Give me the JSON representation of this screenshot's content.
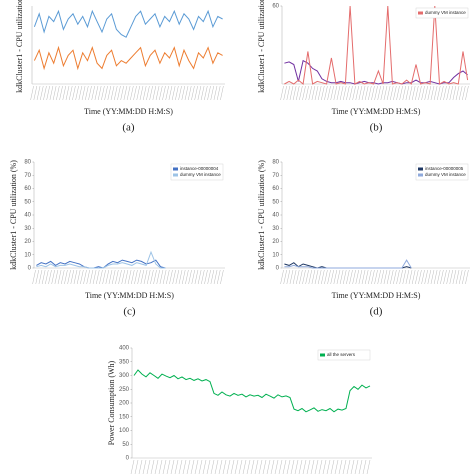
{
  "chart_data": [
    {
      "type": "line",
      "ylabel": "kdkCluster1 - CPU utilization",
      "xlabel": "Time (YY:MM:DD H:M:S)",
      "caption": "(a)",
      "ylim": [
        0,
        30
      ],
      "series": [
        {
          "color": "#5b9bd5",
          "values": [
            22,
            27,
            20,
            26,
            24,
            28,
            21,
            25,
            27,
            23,
            26,
            22,
            28,
            24,
            20,
            25,
            27,
            21,
            19,
            18,
            22,
            26,
            28,
            23,
            25,
            27,
            22,
            26,
            24,
            28,
            23,
            27,
            25,
            21,
            26,
            24,
            28,
            22,
            26,
            25
          ]
        },
        {
          "color": "#ed7d31",
          "values": [
            9,
            13,
            6,
            12,
            8,
            14,
            7,
            11,
            13,
            6,
            12,
            9,
            14,
            8,
            6,
            11,
            13,
            7,
            9,
            8,
            10,
            12,
            14,
            7,
            11,
            13,
            8,
            12,
            10,
            14,
            7,
            13,
            9,
            6,
            12,
            10,
            14,
            8,
            12,
            11
          ]
        }
      ]
    },
    {
      "type": "line",
      "ylabel": "kdkCluster1 - CPU utilization",
      "xlabel": "Time (YY:MM:DD H:M:S)",
      "caption": "(b)",
      "ylim": [
        0,
        60
      ],
      "yticks": [
        60
      ],
      "series": [
        {
          "color": "#7030a0",
          "values": [
            16,
            17,
            15,
            2,
            18,
            16,
            12,
            10,
            4,
            2,
            1,
            1,
            2,
            1,
            1,
            0,
            1,
            2,
            1,
            1,
            0,
            1,
            1,
            2,
            1,
            0,
            1,
            1,
            3,
            1,
            1,
            2,
            1,
            0,
            1,
            1,
            5,
            8,
            10,
            7
          ]
        },
        {
          "name": "dummy VM instance",
          "color": "#e46c6c",
          "values": [
            0,
            2,
            0,
            3,
            0,
            25,
            0,
            2,
            1,
            0,
            20,
            0,
            1,
            0,
            60,
            0,
            2,
            0,
            1,
            0,
            10,
            0,
            60,
            0,
            1,
            0,
            3,
            0,
            15,
            0,
            1,
            0,
            60,
            0,
            2,
            0,
            1,
            0,
            25,
            3
          ]
        }
      ]
    },
    {
      "type": "line",
      "ylabel": "kdkCluster1 - CPU utilization (%)",
      "xlabel": "Time (YY:MM:DD H:M:S)",
      "caption": "(c)",
      "ylim": [
        0,
        80
      ],
      "yticks": [
        0,
        10,
        20,
        30,
        40,
        50,
        60,
        70,
        80
      ],
      "series": [
        {
          "name": "instance-00000004",
          "color": "#4472c4",
          "values": [
            2,
            4,
            3,
            5,
            2,
            4,
            3,
            5,
            4,
            3,
            1,
            0,
            0,
            1,
            0,
            3,
            5,
            4,
            6,
            5,
            4,
            6,
            5,
            3,
            4,
            6,
            1,
            0,
            null,
            null,
            null,
            null,
            null,
            null,
            null,
            null,
            null,
            null,
            null,
            null
          ]
        },
        {
          "name": "dummy VM instance",
          "color": "#9dc3e6",
          "values": [
            1,
            2,
            1,
            3,
            1,
            2,
            2,
            3,
            2,
            1,
            1,
            0,
            0,
            0,
            0,
            2,
            3,
            3,
            4,
            3,
            2,
            4,
            3,
            2,
            12,
            3,
            0,
            0,
            null,
            null,
            null,
            null,
            null,
            null,
            null,
            null,
            null,
            null,
            null,
            null
          ]
        }
      ]
    },
    {
      "type": "line",
      "ylabel": "kdkCluster1 - CPU utilization (%)",
      "xlabel": "Time (YY:MM:DD H:M:S)",
      "caption": "(d)",
      "ylim": [
        0,
        80
      ],
      "yticks": [
        0,
        10,
        20,
        30,
        40,
        50,
        60,
        70,
        80
      ],
      "series": [
        {
          "name": "instance-00000005",
          "color": "#1f3864",
          "values": [
            3,
            2,
            4,
            1,
            3,
            2,
            1,
            0,
            1,
            0,
            0,
            0,
            0,
            0,
            0,
            0,
            0,
            0,
            0,
            0,
            0,
            0,
            0,
            0,
            0,
            0,
            1,
            0,
            null,
            null,
            null,
            null,
            null,
            null,
            null,
            null,
            null,
            null,
            null,
            null
          ]
        },
        {
          "name": "dummy VM instance",
          "color": "#8faadc",
          "values": [
            1,
            1,
            2,
            1,
            1,
            1,
            0,
            0,
            0,
            0,
            0,
            0,
            0,
            0,
            0,
            0,
            0,
            0,
            0,
            0,
            0,
            0,
            0,
            0,
            0,
            0,
            6,
            0,
            null,
            null,
            null,
            null,
            null,
            null,
            null,
            null,
            null,
            null,
            null,
            null
          ]
        }
      ]
    },
    {
      "type": "line",
      "ylabel": "Power Consumption (Wh)",
      "ylim": [
        0,
        400
      ],
      "yticks": [
        0,
        50,
        100,
        150,
        200,
        250,
        300,
        350,
        400
      ],
      "series": [
        {
          "name": "all the servers",
          "color": "#00b050",
          "values": [
            300,
            320,
            305,
            295,
            310,
            300,
            290,
            305,
            298,
            292,
            300,
            288,
            295,
            285,
            290,
            282,
            288,
            280,
            285,
            278,
            235,
            228,
            240,
            230,
            225,
            235,
            228,
            232,
            222,
            230,
            225,
            228,
            220,
            232,
            225,
            218,
            230,
            222,
            226,
            220,
            178,
            172,
            180,
            168,
            175,
            182,
            170,
            176,
            172,
            180,
            168,
            178,
            174,
            180,
            245,
            260,
            250,
            265,
            255,
            262
          ]
        }
      ]
    }
  ]
}
